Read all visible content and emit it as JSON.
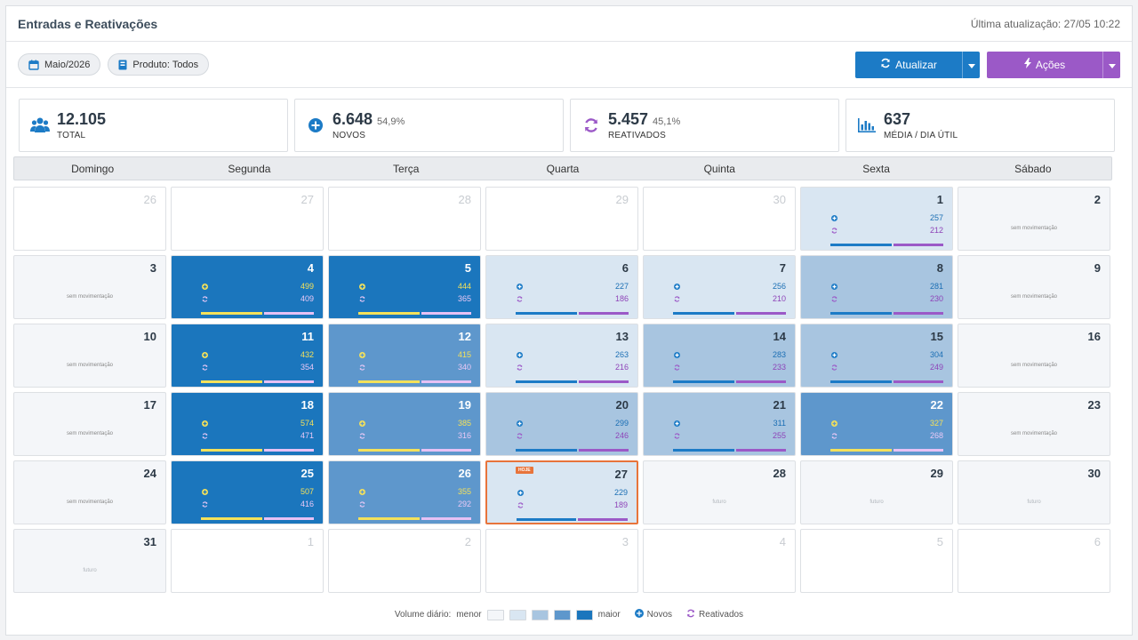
{
  "header": {
    "title": "Entradas e Reativações",
    "last_update": "Última atualização: 27/05 10:22"
  },
  "filters": {
    "month": "Maio/2026",
    "product": "Produto: Todos"
  },
  "buttons": {
    "refresh": "Atualizar",
    "actions": "Ações"
  },
  "stats": [
    {
      "value": "12.105",
      "pct": "",
      "label": "TOTAL",
      "icon": "users-icon"
    },
    {
      "value": "6.648",
      "pct": "54,9%",
      "label": "NOVOS",
      "icon": "plus-circle-icon"
    },
    {
      "value": "5.457",
      "pct": "45,1%",
      "label": "REATIVADOS",
      "icon": "refresh-icon"
    },
    {
      "value": "637",
      "pct": "",
      "label": "MÉDIA / DIA ÚTIL",
      "icon": "bar-chart-icon"
    }
  ],
  "weekdays": [
    "Domingo",
    "Segunda",
    "Terça",
    "Quarta",
    "Quinta",
    "Sexta",
    "Sábado"
  ],
  "calendar": [
    {
      "day": "26",
      "type": "other"
    },
    {
      "day": "27",
      "type": "other"
    },
    {
      "day": "28",
      "type": "other"
    },
    {
      "day": "29",
      "type": "other"
    },
    {
      "day": "30",
      "type": "other"
    },
    {
      "day": "1",
      "type": "data",
      "level": 1,
      "novos": "257",
      "reativados": "212"
    },
    {
      "day": "2",
      "type": "empty",
      "note": "sem movimentação"
    },
    {
      "day": "3",
      "type": "empty",
      "note": "sem movimentação"
    },
    {
      "day": "4",
      "type": "data",
      "level": 4,
      "novos": "499",
      "reativados": "409"
    },
    {
      "day": "5",
      "type": "data",
      "level": 4,
      "novos": "444",
      "reativados": "365"
    },
    {
      "day": "6",
      "type": "data",
      "level": 1,
      "novos": "227",
      "reativados": "186"
    },
    {
      "day": "7",
      "type": "data",
      "level": 1,
      "novos": "256",
      "reativados": "210"
    },
    {
      "day": "8",
      "type": "data",
      "level": 2,
      "novos": "281",
      "reativados": "230"
    },
    {
      "day": "9",
      "type": "empty",
      "note": "sem movimentação"
    },
    {
      "day": "10",
      "type": "empty",
      "note": "sem movimentação"
    },
    {
      "day": "11",
      "type": "data",
      "level": 4,
      "novos": "432",
      "reativados": "354"
    },
    {
      "day": "12",
      "type": "data",
      "level": 3,
      "novos": "415",
      "reativados": "340"
    },
    {
      "day": "13",
      "type": "data",
      "level": 1,
      "novos": "263",
      "reativados": "216"
    },
    {
      "day": "14",
      "type": "data",
      "level": 2,
      "novos": "283",
      "reativados": "233"
    },
    {
      "day": "15",
      "type": "data",
      "level": 2,
      "novos": "304",
      "reativados": "249"
    },
    {
      "day": "16",
      "type": "empty",
      "note": "sem movimentação"
    },
    {
      "day": "17",
      "type": "empty",
      "note": "sem movimentação"
    },
    {
      "day": "18",
      "type": "data",
      "level": 4,
      "novos": "574",
      "reativados": "471"
    },
    {
      "day": "19",
      "type": "data",
      "level": 3,
      "novos": "385",
      "reativados": "316"
    },
    {
      "day": "20",
      "type": "data",
      "level": 2,
      "novos": "299",
      "reativados": "246"
    },
    {
      "day": "21",
      "type": "data",
      "level": 2,
      "novos": "311",
      "reativados": "255"
    },
    {
      "day": "22",
      "type": "data",
      "level": 3,
      "novos": "327",
      "reativados": "268"
    },
    {
      "day": "23",
      "type": "empty",
      "note": "sem movimentação"
    },
    {
      "day": "24",
      "type": "empty",
      "note": "sem movimentação"
    },
    {
      "day": "25",
      "type": "data",
      "level": 4,
      "novos": "507",
      "reativados": "416"
    },
    {
      "day": "26",
      "type": "data",
      "level": 3,
      "novos": "355",
      "reativados": "292"
    },
    {
      "day": "27",
      "type": "data",
      "level": 1,
      "novos": "229",
      "reativados": "189",
      "today": true,
      "badge": "HOJE"
    },
    {
      "day": "28",
      "type": "future",
      "note": "futuro"
    },
    {
      "day": "29",
      "type": "future",
      "note": "futuro"
    },
    {
      "day": "30",
      "type": "future",
      "note": "futuro"
    },
    {
      "day": "31",
      "type": "future",
      "note": "futuro"
    },
    {
      "day": "1",
      "type": "other"
    },
    {
      "day": "2",
      "type": "other"
    },
    {
      "day": "3",
      "type": "other"
    },
    {
      "day": "4",
      "type": "other"
    },
    {
      "day": "5",
      "type": "other"
    },
    {
      "day": "6",
      "type": "other"
    }
  ],
  "legend": {
    "label": "Volume diário:",
    "min": "menor",
    "max": "maior",
    "levels": [
      "#f4f6f9",
      "#d9e6f2",
      "#a8c5e0",
      "#5e97cc",
      "#1b76bd"
    ],
    "novos": "Novos",
    "reativados": "Reativados"
  },
  "colors": {
    "blue": "#1c7bc6",
    "purple": "#9b59c7",
    "today_border": "#e8743b"
  }
}
